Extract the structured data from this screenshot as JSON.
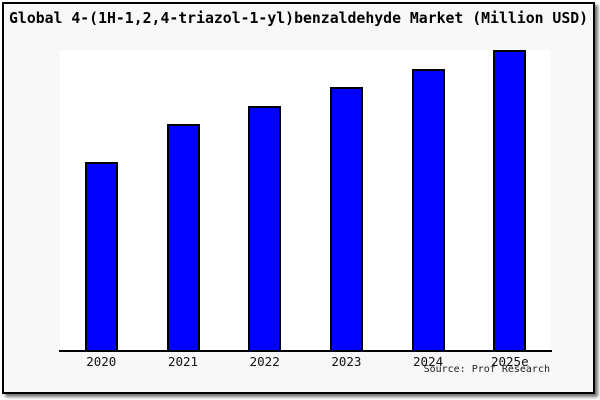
{
  "chart_data": {
    "type": "bar",
    "title": "Global 4-(1H-1,2,4-triazol-1-yl)benzaldehyde Market (Million USD)",
    "categories": [
      "2020",
      "2021",
      "2022",
      "2023",
      "2024",
      "2025e"
    ],
    "values": [
      62.8,
      75.4,
      81.4,
      87.7,
      93.7,
      100
    ],
    "values_note": "No numeric y-axis is shown in the chart; values are relative bar heights expressed as percent of the tallest (2025e) bar.",
    "xlabel": "",
    "ylabel": "",
    "y_axis_labels_shown": false,
    "grid": "off",
    "legend": "none",
    "bar_color": "#0000ff",
    "bar_border_color": "#000000",
    "plot_background": "#ffffff",
    "figure_background": "#f8f8f8"
  },
  "source": {
    "text": "Source: Prof Research"
  }
}
